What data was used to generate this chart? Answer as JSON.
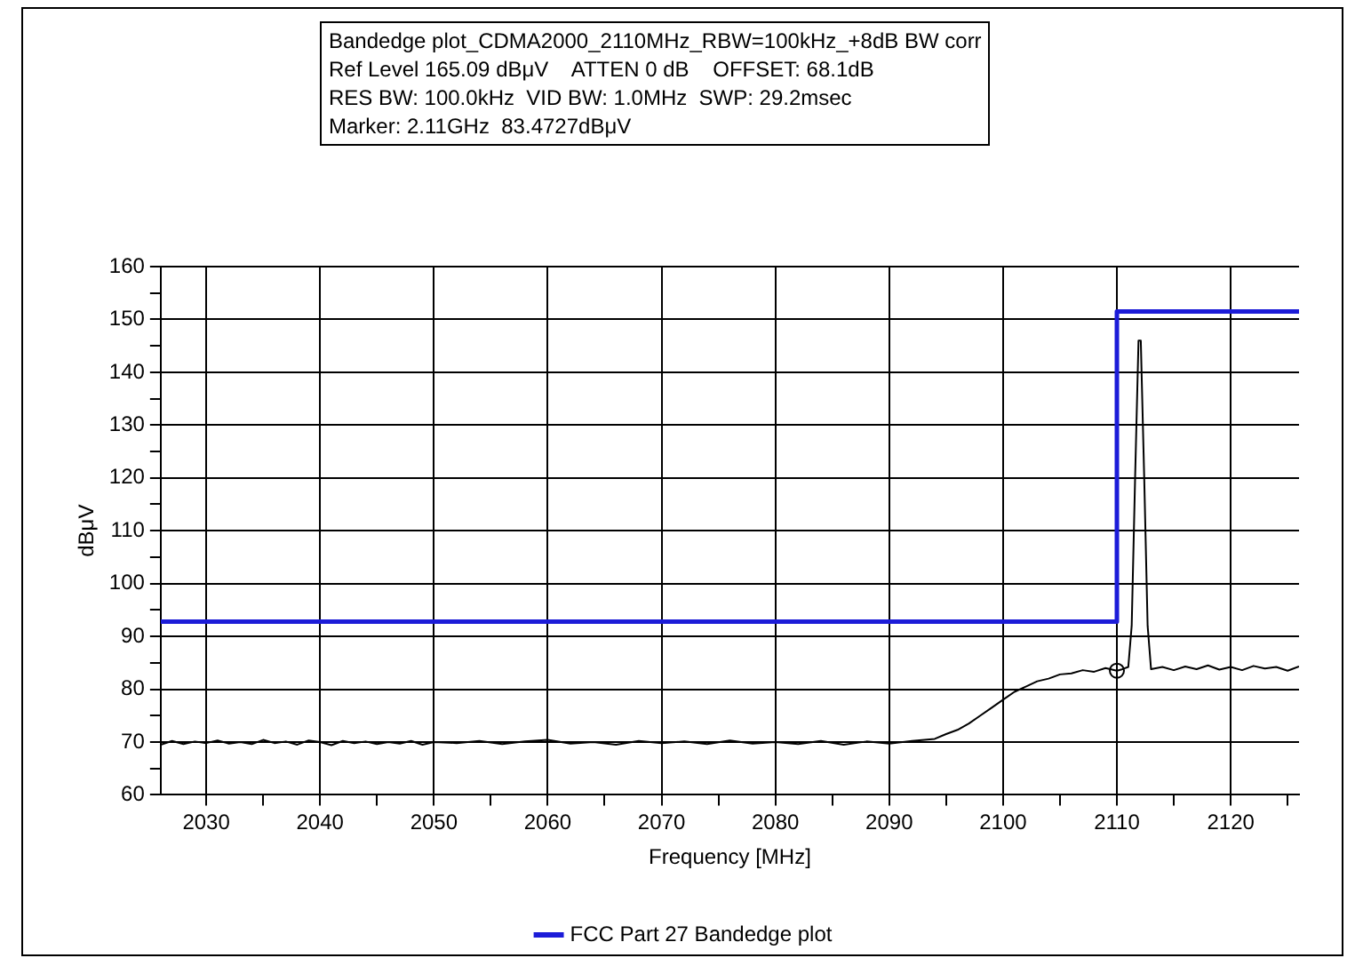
{
  "chart_data": {
    "type": "line",
    "title": "Bandedge plot_CDMA2000_2110MHz_RBW=100kHz_+8dB BW corr",
    "annotations": [
      "Ref Level 165.09 dBμV    ATTEN 0 dB    OFFSET: 68.1dB",
      "RES BW: 100.0kHz  VID BW: 1.0MHz  SWP: 29.2msec",
      "Marker: 2.11GHz  83.4727dBμV"
    ],
    "xlabel": "Frequency [MHz]",
    "ylabel": "dBμV",
    "xlim": [
      2026,
      2126
    ],
    "xticks": [
      2030,
      {
        "value": 2035,
        "label": null
      },
      2040,
      {
        "value": 2045,
        "label": null
      },
      2050,
      {
        "value": 2055,
        "label": null
      },
      2060,
      {
        "value": 2065,
        "label": null
      },
      2070,
      {
        "value": 2075,
        "label": null
      },
      2080,
      {
        "value": 2085,
        "label": null
      },
      2090,
      {
        "value": 2095,
        "label": null
      },
      2100,
      {
        "value": 2105,
        "label": null
      },
      2110,
      {
        "value": 2115,
        "label": null
      },
      2120,
      {
        "value": 2125,
        "label": null
      }
    ],
    "ylim": [
      60,
      160
    ],
    "yticks": [
      60,
      {
        "value": 65,
        "label": null
      },
      70,
      {
        "value": 75,
        "label": null
      },
      80,
      {
        "value": 85,
        "label": null
      },
      90,
      {
        "value": 95,
        "label": null
      },
      100,
      {
        "value": 105,
        "label": null
      },
      110,
      {
        "value": 115,
        "label": null
      },
      120,
      {
        "value": 125,
        "label": null
      },
      130,
      {
        "value": 135,
        "label": null
      },
      140,
      {
        "value": 145,
        "label": null
      },
      150,
      {
        "value": 155,
        "label": null
      },
      160
    ],
    "grid": true,
    "legend": "bottom",
    "marker": "none",
    "line_style": "solid",
    "series": [
      {
        "color": "#000000",
        "x": [
          2026,
          2027,
          2028,
          2029,
          2030,
          2031,
          2032,
          2033,
          2034,
          2035,
          2036,
          2037,
          2038,
          2039,
          2040,
          2041,
          2042,
          2043,
          2044,
          2045,
          2046,
          2047,
          2048,
          2049,
          2050,
          2052,
          2054,
          2056,
          2058,
          2060,
          2062,
          2064,
          2066,
          2068,
          2070,
          2072,
          2074,
          2076,
          2078,
          2080,
          2082,
          2084,
          2086,
          2088,
          2090,
          2092,
          2094,
          2095,
          2096,
          2097,
          2098,
          2099,
          2100,
          2101,
          2102,
          2103,
          2104,
          2105,
          2106,
          2107,
          2108,
          2109,
          2110,
          2110.5,
          2111,
          2111.3,
          2111.6,
          2111.9,
          2112.1,
          2112.4,
          2112.7,
          2113,
          2114,
          2115,
          2116,
          2117,
          2118,
          2119,
          2120,
          2121,
          2122,
          2123,
          2124,
          2125,
          2126
        ],
        "values": [
          69.5,
          70.2,
          69.6,
          70.1,
          69.8,
          70.3,
          69.7,
          70.0,
          69.6,
          70.4,
          69.8,
          70.1,
          69.5,
          70.3,
          70.0,
          69.4,
          70.2,
          69.8,
          70.1,
          69.6,
          70.0,
          69.7,
          70.2,
          69.5,
          70.0,
          69.8,
          70.2,
          69.6,
          70.1,
          70.4,
          69.7,
          70.0,
          69.5,
          70.2,
          69.8,
          70.1,
          69.6,
          70.3,
          69.7,
          70.0,
          69.6,
          70.2,
          69.5,
          70.1,
          69.7,
          70.2,
          70.6,
          71.5,
          72.3,
          73.5,
          75.0,
          76.5,
          78.0,
          79.5,
          80.5,
          81.5,
          82.0,
          82.8,
          83.0,
          83.6,
          83.3,
          84.0,
          83.5,
          83.8,
          84.2,
          92,
          120,
          146,
          146,
          120,
          92,
          83.8,
          84.2,
          83.6,
          84.3,
          83.8,
          84.5,
          83.7,
          84.2,
          83.6,
          84.4,
          83.9,
          84.2,
          83.5,
          84.3
        ]
      },
      {
        "name": "FCC Part 27 Bandedge plot",
        "color": "#1c1cd8",
        "x": [
          2026,
          2110,
          2110,
          2126
        ],
        "values": [
          92.8,
          92.8,
          151.5,
          151.5
        ]
      },
      {
        "type": "scatter",
        "color": "#000000",
        "marker": "circle",
        "x": [
          2110
        ],
        "values": [
          83.5
        ]
      }
    ]
  }
}
